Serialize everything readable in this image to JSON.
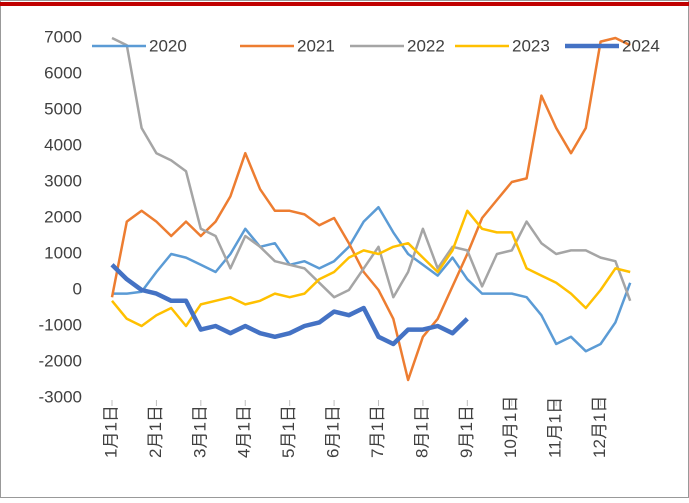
{
  "chart_data": {
    "type": "line",
    "categories": [
      "1月1日",
      null,
      null,
      "2月1日",
      null,
      null,
      "3月1日",
      null,
      null,
      "4月1日",
      null,
      null,
      "5月1日",
      null,
      null,
      "6月1日",
      null,
      null,
      "7月1日",
      null,
      null,
      "8月1日",
      null,
      null,
      "9月1日",
      null,
      null,
      "10月1日",
      null,
      null,
      "11月1日",
      null,
      null,
      "12月1日",
      null,
      null
    ],
    "series": [
      {
        "name": "2020",
        "color": "#5b9bd5",
        "values": [
          -100,
          -100,
          -50,
          500,
          1000,
          900,
          700,
          500,
          1000,
          1700,
          1200,
          1300,
          700,
          800,
          600,
          800,
          1200,
          1900,
          2300,
          1600,
          1000,
          700,
          400,
          900,
          300,
          -100,
          -100,
          -100,
          -200,
          -700,
          -1500,
          -1300,
          -1700,
          -1500,
          -900,
          200
        ]
      },
      {
        "name": "2021",
        "color": "#ed7d31",
        "values": [
          -200,
          1900,
          2200,
          1900,
          1500,
          1900,
          1500,
          1900,
          2600,
          3800,
          2800,
          2200,
          2200,
          2100,
          1800,
          2000,
          1300,
          500,
          0,
          -800,
          -2500,
          -1300,
          -800,
          100,
          1000,
          2000,
          2500,
          3000,
          3100,
          5400,
          4500,
          3800,
          4500,
          6900,
          7000,
          6800
        ]
      },
      {
        "name": "2022",
        "color": "#a5a5a5",
        "values": [
          7000,
          6800,
          4500,
          3800,
          3600,
          3300,
          1700,
          1500,
          600,
          1500,
          1200,
          800,
          700,
          600,
          200,
          -200,
          0,
          600,
          1200,
          -200,
          500,
          1700,
          600,
          1200,
          1100,
          100,
          1000,
          1100,
          1900,
          1300,
          1000,
          1100,
          1100,
          900,
          800,
          -300
        ]
      },
      {
        "name": "2023",
        "color": "#ffc000",
        "values": [
          -300,
          -800,
          -1000,
          -700,
          -500,
          -1000,
          -400,
          -300,
          -200,
          -400,
          -300,
          -100,
          -200,
          -100,
          300,
          500,
          900,
          1100,
          1000,
          1200,
          1300,
          900,
          500,
          1100,
          2200,
          1700,
          1600,
          1600,
          600,
          400,
          200,
          -100,
          -500,
          0,
          600,
          500
        ]
      },
      {
        "name": "2024",
        "color": "#4472c4",
        "values": [
          700,
          300,
          0,
          -100,
          -300,
          -300,
          -1100,
          -1000,
          -1200,
          -1000,
          -1200,
          -1300,
          -1200,
          -1000,
          -900,
          -600,
          -700,
          -500,
          -1300,
          -1500,
          -1100,
          -1100,
          -1000,
          -1200,
          -800,
          null,
          null,
          null,
          null,
          null,
          null,
          null,
          null,
          null,
          null,
          null
        ]
      }
    ],
    "ylim": [
      -3000,
      7000
    ],
    "yticks": [
      -3000,
      -2000,
      -1000,
      0,
      1000,
      2000,
      3000,
      4000,
      5000,
      6000,
      7000
    ],
    "grid": false
  }
}
